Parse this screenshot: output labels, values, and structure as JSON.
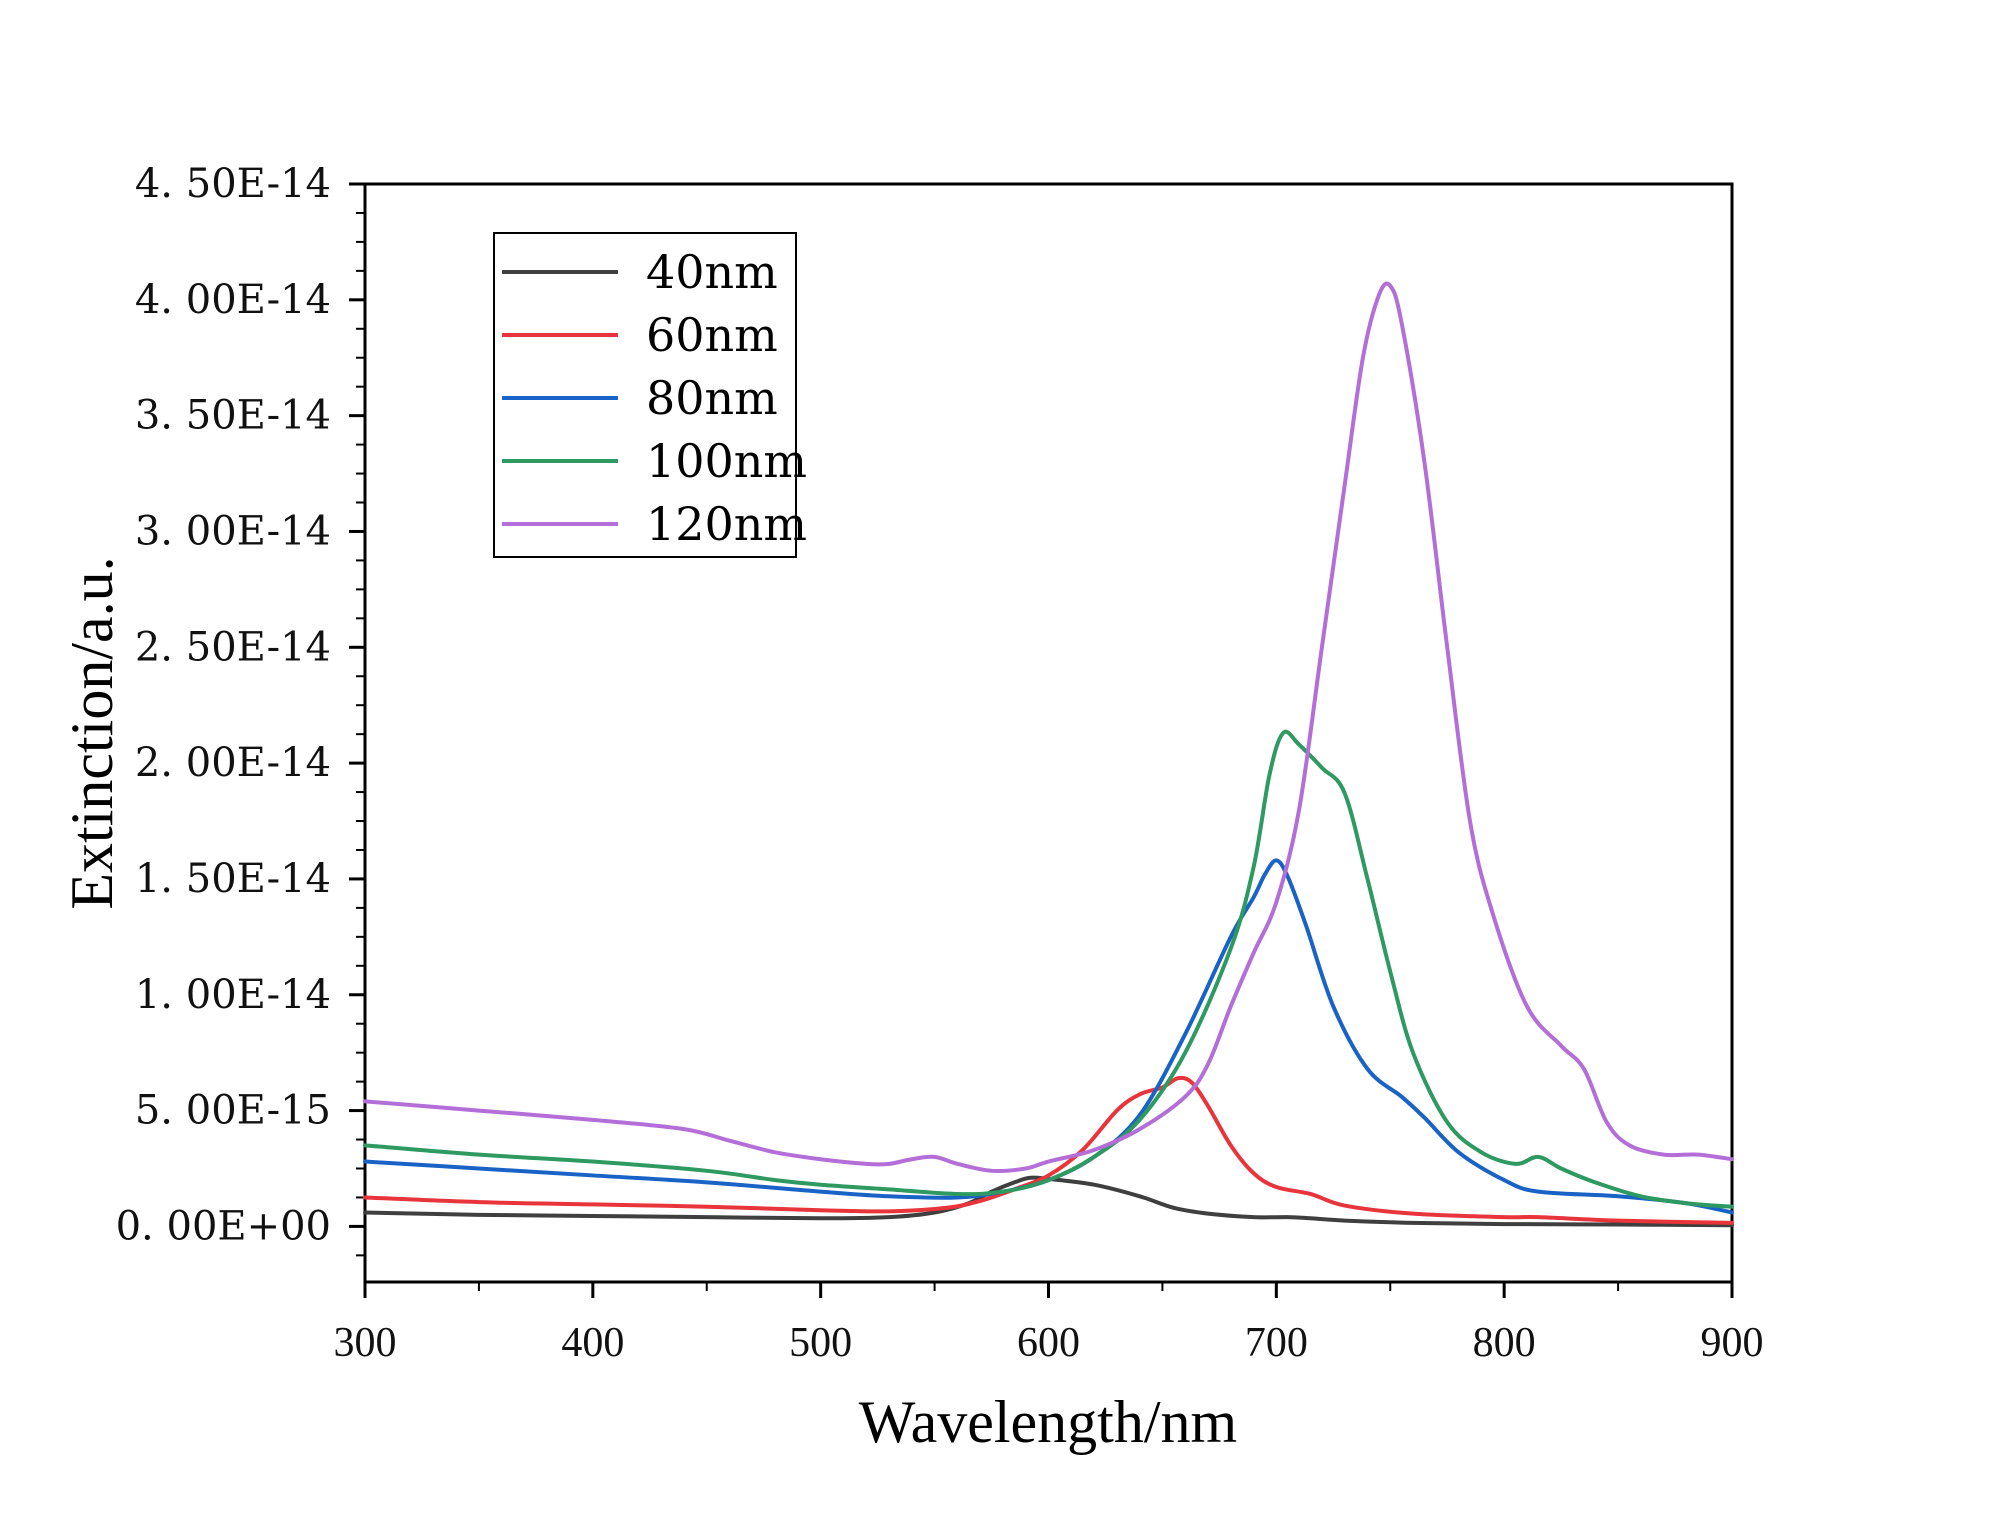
{
  "chart_data": {
    "type": "line",
    "title": "",
    "xlabel": "Wavelength/nm",
    "ylabel": "Extinction/a.u.",
    "xlim": [
      300,
      900
    ],
    "ylim": [
      -2.4e-15,
      4.5e-14
    ],
    "x_ticks": [
      300,
      400,
      500,
      600,
      700,
      800,
      900
    ],
    "x_tick_labels": [
      "300",
      "400",
      "500",
      "600",
      "700",
      "800",
      "900"
    ],
    "y_ticks": [
      0,
      5e-15,
      1e-14,
      1.5e-14,
      2e-14,
      2.5e-14,
      3e-14,
      3.5e-14,
      4e-14,
      4.5e-14
    ],
    "y_tick_labels": [
      "0. 00E+00",
      "5. 00E-15",
      "1. 00E-14",
      "1. 50E-14",
      "2. 00E-14",
      "2. 50E-14",
      "3. 00E-14",
      "3. 50E-14",
      "4. 00E-14",
      "4. 50E-14"
    ],
    "grid": false,
    "legend_position": "top-left",
    "series": [
      {
        "name": "40nm",
        "color": "#3f3f3f",
        "x": [
          300,
          350,
          400,
          450,
          500,
          530,
          550,
          565,
          575,
          585,
          592,
          600,
          620,
          640,
          655,
          670,
          690,
          705,
          715,
          730,
          760,
          800,
          850,
          900
        ],
        "y": [
          6e-16,
          5e-16,
          4.5e-16,
          4e-16,
          3.5e-16,
          4e-16,
          6e-16,
          1e-15,
          1.5e-15,
          1.9e-15,
          2.1e-15,
          2.05e-15,
          1.8e-15,
          1.3e-15,
          8e-16,
          5.5e-16,
          4e-16,
          4e-16,
          3.5e-16,
          2.5e-16,
          1.5e-16,
          1e-16,
          8e-17,
          5e-17
        ]
      },
      {
        "name": "60nm",
        "color": "#e8353c",
        "x": [
          300,
          350,
          400,
          450,
          500,
          530,
          555,
          570,
          585,
          600,
          615,
          630,
          640,
          650,
          657,
          663,
          670,
          680,
          690,
          700,
          715,
          730,
          760,
          800,
          815,
          850,
          900
        ],
        "y": [
          1.25e-15,
          1.05e-15,
          9.5e-16,
          8.5e-16,
          7e-16,
          6.5e-16,
          8e-16,
          1.1e-15,
          1.6e-15,
          2.2e-15,
          3.3e-15,
          5e-15,
          5.7e-15,
          6e-15,
          6.4e-15,
          6.2e-15,
          5.2e-15,
          3.5e-15,
          2.3e-15,
          1.7e-15,
          1.4e-15,
          9e-16,
          5.5e-16,
          4e-16,
          4e-16,
          2.5e-16,
          1.5e-16
        ]
      },
      {
        "name": "80nm",
        "color": "#1a63c6",
        "x": [
          300,
          350,
          400,
          450,
          500,
          530,
          560,
          580,
          600,
          620,
          640,
          660,
          680,
          690,
          695,
          700,
          705,
          713,
          725,
          740,
          755,
          765,
          780,
          800,
          815,
          850,
          880,
          900
        ],
        "y": [
          2.8e-15,
          2.5e-15,
          2.2e-15,
          1.9e-15,
          1.5e-15,
          1.3e-15,
          1.25e-15,
          1.5e-15,
          2e-15,
          3e-15,
          4.8e-15,
          8.3e-15,
          1.25e-14,
          1.42e-14,
          1.52e-14,
          1.58e-14,
          1.51e-14,
          1.3e-14,
          9.5e-15,
          6.8e-15,
          5.6e-15,
          4.7e-15,
          3.2e-15,
          2e-15,
          1.5e-15,
          1.3e-15,
          1e-15,
          6e-16
        ]
      },
      {
        "name": "100nm",
        "color": "#2e9960",
        "x": [
          300,
          350,
          400,
          450,
          480,
          500,
          530,
          560,
          580,
          600,
          620,
          640,
          660,
          680,
          690,
          697,
          703,
          710,
          720,
          730,
          740,
          750,
          760,
          775,
          790,
          805,
          815,
          825,
          840,
          860,
          880,
          900
        ],
        "y": [
          3.5e-15,
          3.1e-15,
          2.8e-15,
          2.4e-15,
          2e-15,
          1.8e-15,
          1.6e-15,
          1.4e-15,
          1.5e-15,
          2e-15,
          3e-15,
          4.6e-15,
          7.5e-15,
          1.2e-14,
          1.55e-14,
          1.95e-14,
          2.13e-14,
          2.08e-14,
          1.98e-14,
          1.87e-14,
          1.5e-14,
          1.1e-14,
          7.5e-15,
          4.5e-15,
          3.2e-15,
          2.7e-15,
          3e-15,
          2.5e-15,
          1.9e-15,
          1.3e-15,
          1e-15,
          8.5e-16
        ]
      },
      {
        "name": "120nm",
        "color": "#b36ed8",
        "x": [
          300,
          350,
          400,
          440,
          460,
          480,
          500,
          520,
          530,
          540,
          550,
          560,
          575,
          590,
          600,
          620,
          640,
          660,
          670,
          680,
          690,
          700,
          710,
          720,
          730,
          738,
          745,
          750,
          755,
          765,
          775,
          785,
          795,
          810,
          825,
          835,
          845,
          855,
          870,
          885,
          900
        ],
        "y": [
          5.4e-15,
          5e-15,
          4.6e-15,
          4.2e-15,
          3.7e-15,
          3.2e-15,
          2.9e-15,
          2.7e-15,
          2.7e-15,
          2.9e-15,
          3e-15,
          2.7e-15,
          2.4e-15,
          2.5e-15,
          2.8e-15,
          3.3e-15,
          4.2e-15,
          5.6e-15,
          7e-15,
          9.5e-15,
          1.18e-14,
          1.4e-14,
          1.8e-14,
          2.5e-14,
          3.2e-14,
          3.75e-14,
          4.02e-14,
          4.06e-14,
          3.9e-14,
          3.3e-14,
          2.5e-14,
          1.75e-14,
          1.35e-14,
          9.5e-15,
          7.8e-15,
          6.8e-15,
          4.5e-15,
          3.5e-15,
          3.1e-15,
          3.1e-15,
          2.9e-15
        ]
      }
    ]
  }
}
